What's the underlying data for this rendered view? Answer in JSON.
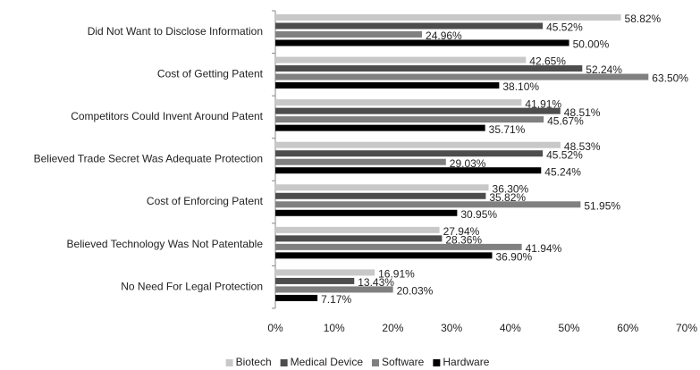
{
  "chart_data": {
    "type": "hbar",
    "categories": [
      "Did Not Want to Disclose Information",
      "Cost of Getting Patent",
      "Competitors Could Invent Around Patent",
      "Believed Trade Secret Was Adequate Protection",
      "Cost of Enforcing Patent",
      "Believed Technology Was Not Patentable",
      "No Need For Legal Protection"
    ],
    "series": [
      {
        "name": "Biotech",
        "color": "#c8c8c8",
        "values": [
          58.82,
          42.65,
          41.91,
          48.53,
          36.3,
          27.94,
          16.91
        ],
        "value_labels": [
          "58.82%",
          "42.65%",
          "41.91%",
          "48.53%",
          "36.30%",
          "27.94%",
          "16.91%"
        ]
      },
      {
        "name": "Medical Device",
        "color": "#4d4d4d",
        "values": [
          45.52,
          52.24,
          48.51,
          45.52,
          35.82,
          28.36,
          13.43
        ],
        "value_labels": [
          "45.52%",
          "52.24%",
          "48.51%",
          "45.52%",
          "35.82%",
          "28.36%",
          "13.43%"
        ]
      },
      {
        "name": "Software",
        "color": "#808080",
        "values": [
          24.96,
          63.5,
          45.67,
          29.03,
          51.95,
          41.94,
          20.03
        ],
        "value_labels": [
          "24.96%",
          "63.50%",
          "45.67%",
          "29.03%",
          "51.95%",
          "41.94%",
          "20.03%"
        ]
      },
      {
        "name": "Hardware",
        "color": "#000000",
        "values": [
          50.0,
          38.1,
          35.71,
          45.24,
          30.95,
          36.9,
          7.17
        ],
        "value_labels": [
          "50.00%",
          "38.10%",
          "35.71%",
          "45.24%",
          "30.95%",
          "36.90%",
          "7.17%"
        ]
      }
    ],
    "xlim": [
      0,
      70
    ],
    "xticks": [
      {
        "value": 0,
        "label": "0%"
      },
      {
        "value": 10,
        "label": "10%"
      },
      {
        "value": 20,
        "label": "20%"
      },
      {
        "value": 30,
        "label": "30%"
      },
      {
        "value": 40,
        "label": "40%"
      },
      {
        "value": 50,
        "label": "50%"
      },
      {
        "value": 60,
        "label": "60%"
      },
      {
        "value": 70,
        "label": "70%"
      }
    ],
    "legend": "bottom"
  }
}
